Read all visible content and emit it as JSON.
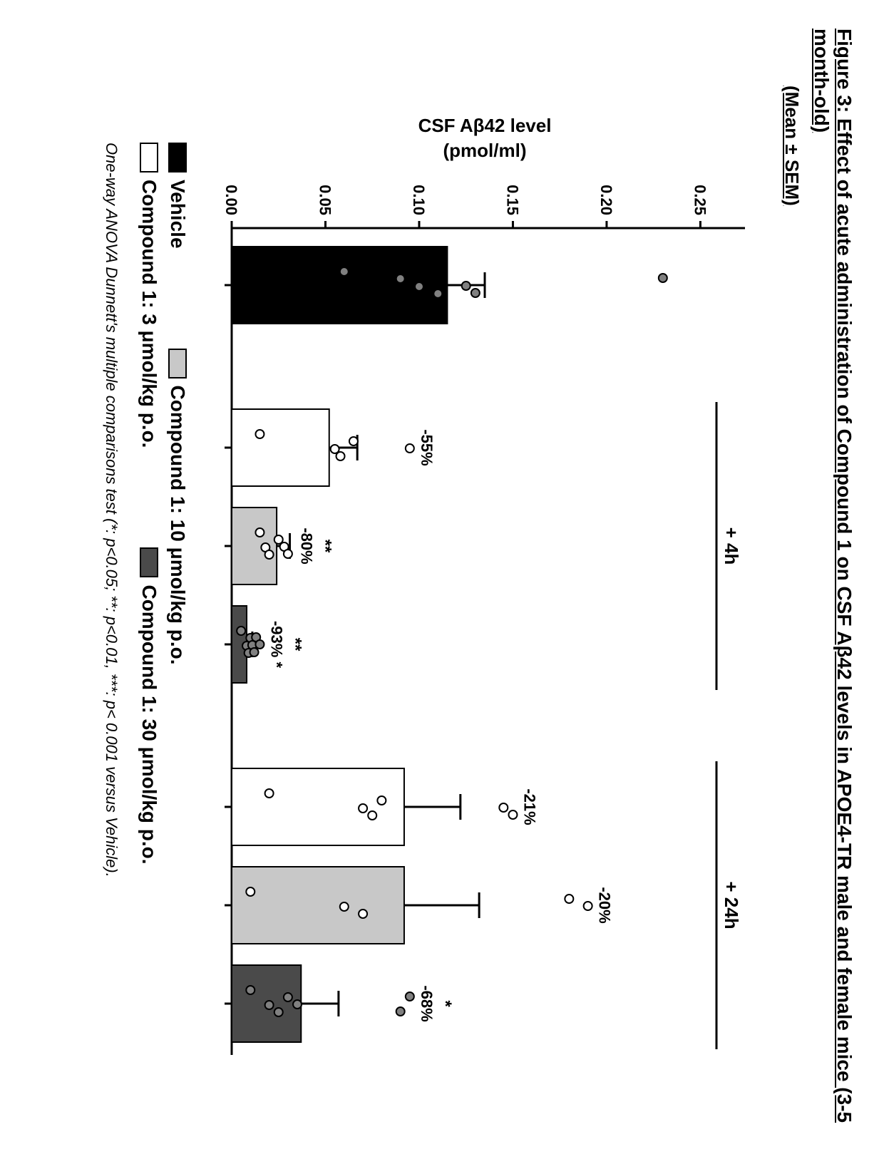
{
  "title": "Figure 3: Effect of acute administration of Compound 1 on CSF Aβ42 levels in APOE4-TR male and female mice (3-5 month-old)",
  "subtitle": "(Mean ± SEM)",
  "chart": {
    "type": "bar",
    "ylabel_line1": "CSF Aβ42 level",
    "ylabel_line2": "(pmol/ml)",
    "ylim": [
      0,
      0.27
    ],
    "yticks": [
      0.0,
      0.05,
      0.1,
      0.15,
      0.2,
      0.25
    ],
    "ytick_labels": [
      "0.00",
      "0.05",
      "0.10",
      "0.15",
      "0.20",
      "0.25"
    ],
    "label_fontsize": 26,
    "tick_fontsize": 22,
    "group_labels": [
      "+ 4h",
      "+ 24h"
    ],
    "group_label_fontsize": 26,
    "background_color": "#ffffff",
    "axis_color": "#000000",
    "axis_width": 3,
    "bars": [
      {
        "group": 0,
        "x": 0,
        "height": 0.115,
        "fill": "#000000",
        "err": 0.02,
        "pct": "",
        "sig": "",
        "points": [
          0.06,
          0.1,
          0.11,
          0.09,
          0.125,
          0.13,
          0.23
        ]
      },
      {
        "group": 1,
        "x": 1,
        "height": 0.052,
        "fill": "#ffffff",
        "err": 0.015,
        "pct": "-55%",
        "sig": "",
        "points": [
          0.015,
          0.055,
          0.058,
          0.065,
          0.095
        ]
      },
      {
        "group": 1,
        "x": 2,
        "height": 0.024,
        "fill": "#c8c8c8",
        "err": 0.007,
        "pct": "-80%",
        "sig": "**",
        "points": [
          0.015,
          0.018,
          0.02,
          0.025,
          0.028,
          0.03
        ]
      },
      {
        "group": 1,
        "x": 3,
        "height": 0.008,
        "fill": "#4a4a4a",
        "err": 0.003,
        "pct": "-93% *",
        "sig": "**",
        "points": [
          0.005,
          0.008,
          0.009,
          0.01,
          0.011,
          0.012,
          0.013,
          0.015
        ]
      },
      {
        "group": 2,
        "x": 4,
        "height": 0.092,
        "fill": "#ffffff",
        "err": 0.03,
        "pct": "-21%",
        "sig": "",
        "points": [
          0.02,
          0.07,
          0.075,
          0.08,
          0.145,
          0.15
        ]
      },
      {
        "group": 2,
        "x": 5,
        "height": 0.092,
        "fill": "#c8c8c8",
        "err": 0.04,
        "pct": "-20%",
        "sig": "",
        "points": [
          0.01,
          0.06,
          0.07,
          0.18,
          0.19
        ]
      },
      {
        "group": 2,
        "x": 6,
        "height": 0.037,
        "fill": "#4a4a4a",
        "err": 0.02,
        "pct": "-68%",
        "sig": "*",
        "points": [
          0.01,
          0.02,
          0.025,
          0.03,
          0.035,
          0.09,
          0.095
        ]
      }
    ],
    "bar_width": 0.78,
    "error_cap_width": 18,
    "point_radius": 6,
    "point_stroke": "#000000",
    "point_fill_on_dark": "#808080",
    "point_fill_on_light": "#ffffff",
    "colors": {
      "vehicle": "#000000",
      "dose3": "#ffffff",
      "dose10": "#c8c8c8",
      "dose30": "#4a4a4a"
    }
  },
  "legend": {
    "items": [
      {
        "label": "Vehicle",
        "fill": "#000000"
      },
      {
        "label": "Compound 1: 10 μmol/kg p.o.",
        "fill": "#c8c8c8"
      },
      {
        "label": "Compound 1: 3 μmol/kg p.o.",
        "fill": "#ffffff"
      },
      {
        "label": "Compound 1: 30 μmol/kg p.o.",
        "fill": "#4a4a4a"
      }
    ]
  },
  "footnote": "One-way ANOVA Dunnett's multiple comparisons test (*: p<0.05; **: p<0.01, ***: p< 0.001 versus Vehicle)."
}
